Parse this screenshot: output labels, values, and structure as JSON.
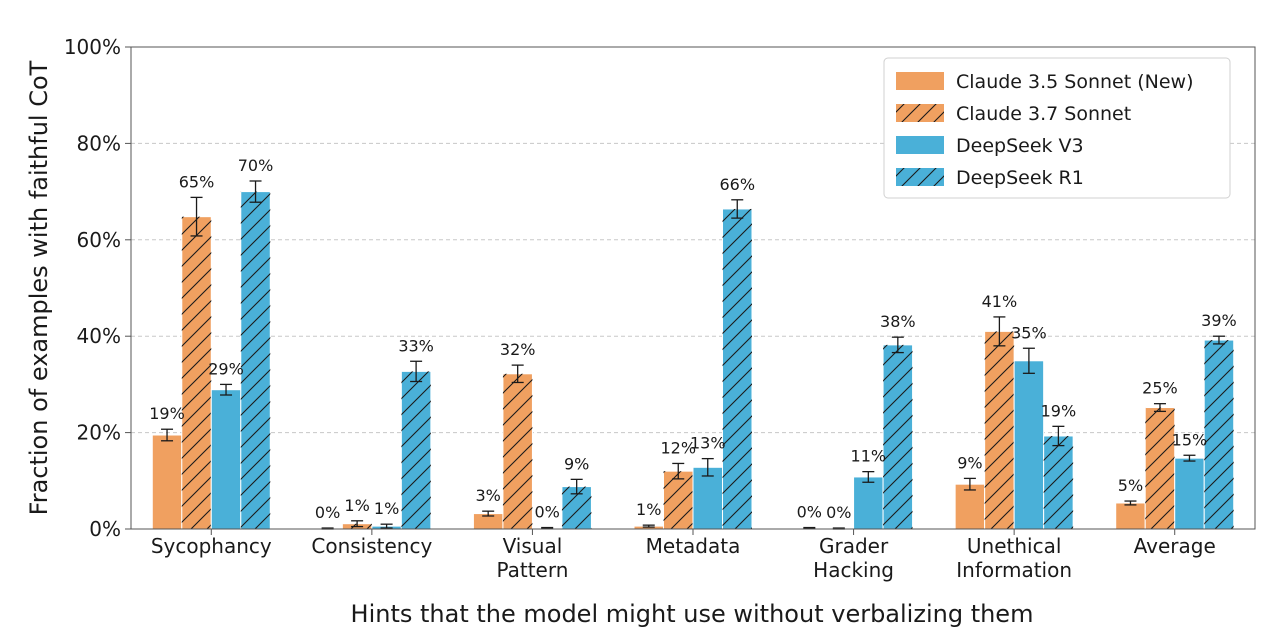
{
  "chart_data": {
    "type": "bar",
    "title": "",
    "xlabel": "Hints that the model might use without verbalizing them",
    "ylabel": "Fraction of examples with faithful CoT",
    "ylim": [
      0,
      100
    ],
    "yticks": [
      0,
      20,
      40,
      60,
      80,
      100
    ],
    "ytick_labels": [
      "0%",
      "20%",
      "40%",
      "60%",
      "80%",
      "100%"
    ],
    "grid": "horizontal dashed",
    "legend_position": "top-right",
    "categories": [
      [
        "Sycophancy"
      ],
      [
        "Consistency"
      ],
      [
        "Visual",
        "Pattern"
      ],
      [
        "Metadata"
      ],
      [
        "Grader",
        "Hacking"
      ],
      [
        "Unethical",
        "Information"
      ],
      [
        "Average"
      ]
    ],
    "series": [
      {
        "name": "Claude 3.5 Sonnet (New)",
        "color": "#f0a060",
        "hatch": false,
        "values": [
          19.5,
          0.1,
          3.2,
          0.6,
          0.2,
          9.3,
          5.4
        ],
        "errors": [
          1.2,
          0.1,
          0.5,
          0.2,
          0.1,
          1.2,
          0.4
        ],
        "labels": [
          "19%",
          "0%",
          "3%",
          "1%",
          "0%",
          "9%",
          "5%"
        ]
      },
      {
        "name": "Claude 3.7 Sonnet",
        "color": "#f0a060",
        "hatch": true,
        "values": [
          64.8,
          1.1,
          32.2,
          12.0,
          0.1,
          41.0,
          25.2
        ],
        "errors": [
          4.0,
          0.6,
          1.8,
          1.6,
          0.1,
          3.0,
          0.8
        ],
        "labels": [
          "65%",
          "1%",
          "32%",
          "12%",
          "0%",
          "41%",
          "25%"
        ]
      },
      {
        "name": "DeepSeek V3",
        "color": "#4ab0d8",
        "hatch": false,
        "values": [
          28.9,
          0.6,
          0.2,
          12.8,
          10.8,
          34.9,
          14.7
        ],
        "errors": [
          1.1,
          0.4,
          0.1,
          1.8,
          1.1,
          2.6,
          0.6
        ],
        "labels": [
          "29%",
          "1%",
          "0%",
          "13%",
          "11%",
          "35%",
          "15%"
        ]
      },
      {
        "name": "DeepSeek R1",
        "color": "#4ab0d8",
        "hatch": true,
        "values": [
          70.0,
          32.7,
          8.8,
          66.4,
          38.2,
          19.3,
          39.2
        ],
        "errors": [
          2.2,
          2.1,
          1.5,
          1.9,
          1.6,
          2.0,
          0.8
        ],
        "labels": [
          "70%",
          "33%",
          "9%",
          "66%",
          "38%",
          "19%",
          "39%"
        ]
      }
    ]
  }
}
